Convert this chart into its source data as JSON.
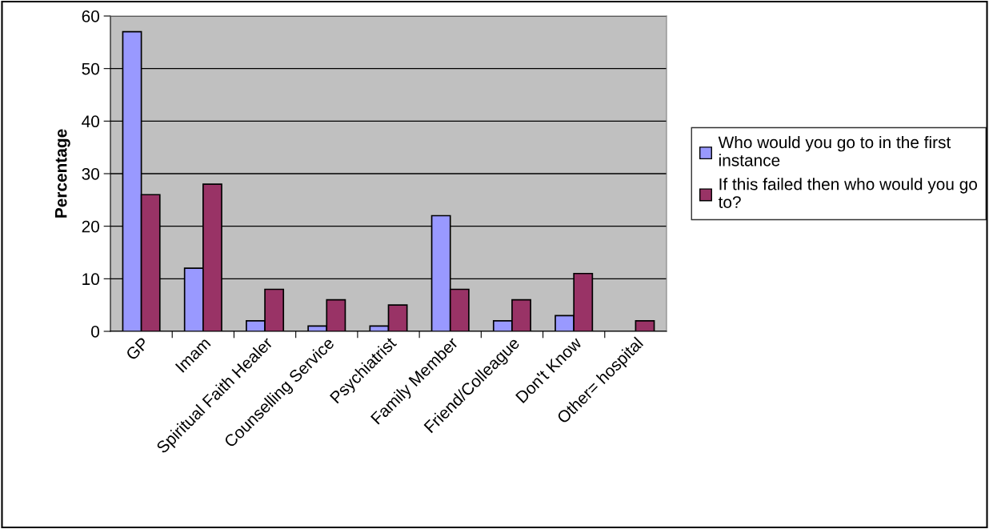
{
  "chart_data": {
    "type": "bar",
    "ylabel": "Percentage",
    "categories": [
      "GP",
      "Imam",
      "Spiritual Faith Healer",
      "Counselling Service",
      "Psychiatrist",
      "Family Member",
      "Friend/Colleague",
      "Don't Know",
      "Other= hospital"
    ],
    "series": [
      {
        "name": "Who would you go to in the first instance",
        "color": "#9999ff",
        "values": [
          57,
          12,
          2,
          1,
          1,
          22,
          2,
          3,
          null
        ]
      },
      {
        "name": "If this failed then who would you go to?",
        "color": "#993366",
        "values": [
          26,
          28,
          8,
          6,
          5,
          8,
          6,
          11,
          2
        ]
      }
    ],
    "ylim": [
      0,
      60
    ],
    "yticks": [
      0,
      10,
      20,
      30,
      40,
      50,
      60
    ],
    "grid": "y",
    "legend": "right"
  }
}
